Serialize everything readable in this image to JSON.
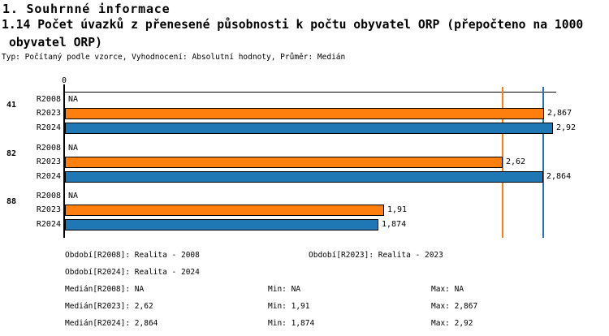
{
  "header": {
    "title": "1. Souhrnné informace",
    "subtitle_line1": "1.14 Počet úvazků z přenesené působnosti k počtu obyvatel ORP (přepočteno na 1000",
    "subtitle_line2": "obyvatel ORP)",
    "meta": "Typ: Počítaný podle vzorce, Vyhodnocení: Absolutní hodnoty, Průměr: Medián"
  },
  "chart_data": {
    "type": "bar",
    "orientation": "horizontal",
    "title": "1.14 Počet úvazků z přenesené působnosti k počtu obyvatel ORP (přepočteno na 1000 obyvatel ORP)",
    "xlim": [
      0,
      2.94
    ],
    "x_origin_tick_label": "0",
    "decimal_format": "comma-decimal (cs-CZ)",
    "grid": false,
    "colors": {
      "R2023": "#ff7f0e",
      "R2024": "#1f77b4",
      "axis": "#000000"
    },
    "groups": [
      {
        "id": "41",
        "bars": [
          {
            "label": "R2008",
            "value": null,
            "display": "NA",
            "series": "R2008"
          },
          {
            "label": "R2023",
            "value": 2.867,
            "display": "2,867",
            "series": "R2023"
          },
          {
            "label": "R2024",
            "value": 2.92,
            "display": "2,92",
            "series": "R2024"
          }
        ]
      },
      {
        "id": "82",
        "bars": [
          {
            "label": "R2008",
            "value": null,
            "display": "NA",
            "series": "R2008"
          },
          {
            "label": "R2023",
            "value": 2.62,
            "display": "2,62",
            "series": "R2023"
          },
          {
            "label": "R2024",
            "value": 2.864,
            "display": "2,864",
            "series": "R2024"
          }
        ]
      },
      {
        "id": "88",
        "bars": [
          {
            "label": "R2008",
            "value": null,
            "display": "NA",
            "series": "R2008"
          },
          {
            "label": "R2023",
            "value": 1.91,
            "display": "1,91",
            "series": "R2023"
          },
          {
            "label": "R2024",
            "value": 1.874,
            "display": "1,874",
            "series": "R2024"
          }
        ]
      }
    ],
    "reference_lines": [
      {
        "name": "median-R2023",
        "value": 2.62,
        "color": "#ff7f0e"
      },
      {
        "name": "median-R2024",
        "value": 2.864,
        "color": "#1f77b4"
      }
    ]
  },
  "footer": {
    "periods_row1_left": "Období[R2008]: Realita - 2008",
    "periods_row1_right": "Období[R2023]: Realita - 2023",
    "periods_row2_left": "Období[R2024]: Realita - 2024",
    "stats": [
      {
        "median": "Medián[R2008]: NA",
        "min": "Min: NA",
        "max": "Max: NA"
      },
      {
        "median": "Medián[R2023]: 2,62",
        "min": "Min: 1,91",
        "max": "Max: 2,867"
      },
      {
        "median": "Medián[R2024]: 2,864",
        "min": "Min: 1,874",
        "max": "Max: 2,92"
      }
    ]
  }
}
